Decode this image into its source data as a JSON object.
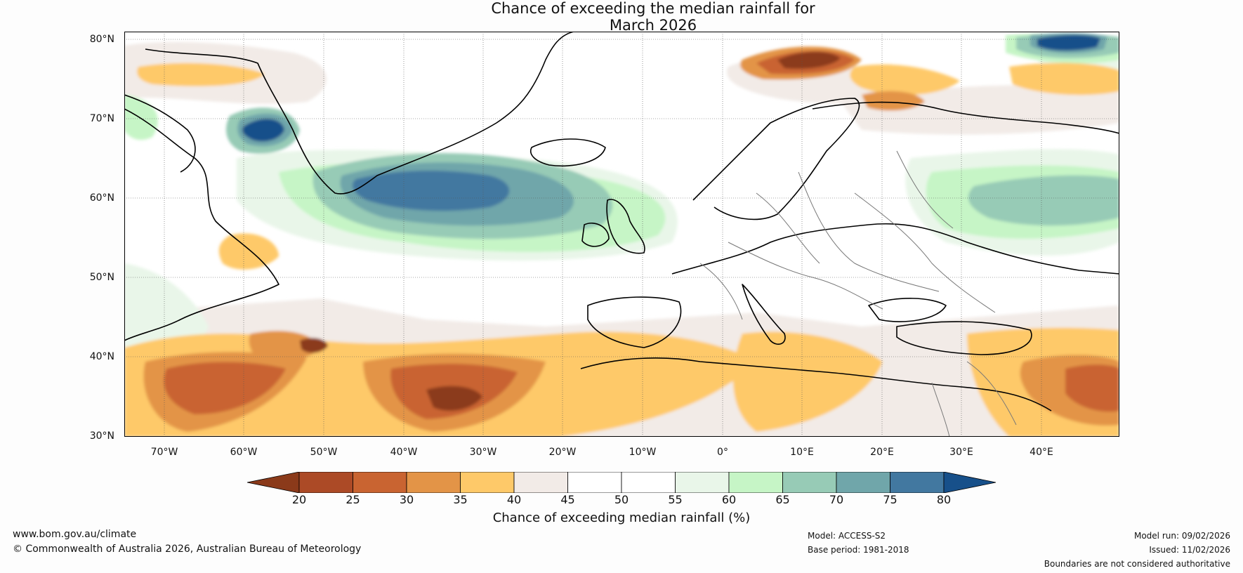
{
  "title_line1": "Chance of exceeding the median rainfall for",
  "title_line2": "March 2026",
  "map": {
    "region": "North Atlantic and Europe",
    "lat_labels": [
      "80°N",
      "70°N",
      "60°N",
      "50°N",
      "40°N",
      "30°N"
    ],
    "lon_labels": [
      "70°W",
      "60°W",
      "50°W",
      "40°W",
      "30°W",
      "20°W",
      "10°W",
      "0°",
      "10°E",
      "20°E",
      "30°E",
      "40°E"
    ],
    "extent": {
      "lon_min": -75,
      "lon_max": 50,
      "lat_min": 30,
      "lat_max": 81
    }
  },
  "colorbar": {
    "label": "Chance of exceeding median rainfall (%)",
    "ticks": [
      "20",
      "25",
      "30",
      "35",
      "40",
      "45",
      "50",
      "55",
      "60",
      "65",
      "70",
      "75",
      "80"
    ],
    "colors": [
      "#8b3a1a",
      "#ac4a26",
      "#c96431",
      "#e39447",
      "#fec969",
      "#f2ebe7",
      "#ffffff",
      "#ffffff",
      "#e9f6e9",
      "#c6f5c6",
      "#97cbb6",
      "#70a6aa",
      "#4278a0",
      "#17508a"
    ]
  },
  "footer": {
    "website": "www.bom.gov.au/climate",
    "copyright": "© Commonwealth of Australia 2026, Australian Bureau of Meteorology",
    "model": "Model: ACCESS-S2",
    "base_period": "Base period: 1981-2018",
    "model_run": "Model run: 09/02/2026",
    "issued": "Issued: 11/02/2026",
    "disclaimer": "Boundaries are not considered authoritative"
  }
}
